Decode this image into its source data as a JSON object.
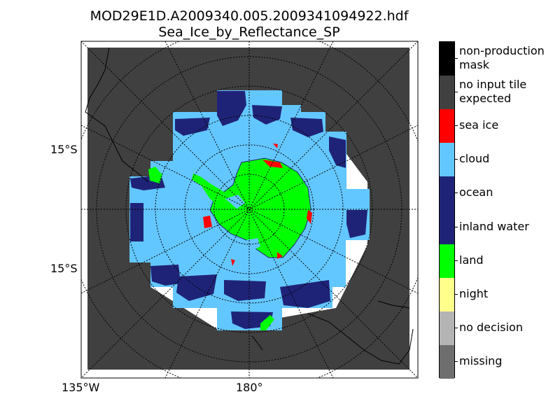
{
  "figure": {
    "title_line1": "MOD29E1D.A2009340.005.2009341094922.hdf",
    "title_line2": "Sea_Ice_by_Reflectance_SP"
  },
  "map": {
    "projection": "south-polar stereographic",
    "background_color": "#404040",
    "lat_labels": [
      "15°S",
      "15°S"
    ],
    "lon_labels": [
      "135°W",
      "180°"
    ]
  },
  "legend": {
    "entries": [
      {
        "label": "non-production mask",
        "color": "#000000"
      },
      {
        "label": "no input tile expected",
        "color": "#404040"
      },
      {
        "label": "sea ice",
        "color": "#ff0000"
      },
      {
        "label": "cloud",
        "color": "#63c7ff"
      },
      {
        "label": "ocean",
        "color": "#1f2378"
      },
      {
        "label": "inland water",
        "color": "#1f2378"
      },
      {
        "label": "land",
        "color": "#00ff00"
      },
      {
        "label": "night",
        "color": "#ffff8c"
      },
      {
        "label": "no decision",
        "color": "#b4b4b4"
      },
      {
        "label": "missing",
        "color": "#6e6e6e"
      }
    ]
  }
}
